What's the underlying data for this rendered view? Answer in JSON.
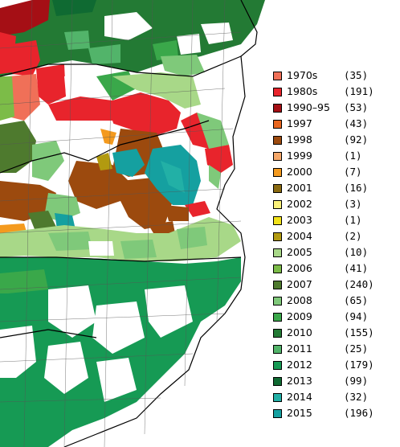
{
  "map": {
    "legend": [
      {
        "label": "1970s",
        "count": "(35)",
        "color": "#f07058"
      },
      {
        "label": "1980s",
        "count": "(191)",
        "color": "#e8242c"
      },
      {
        "label": "1990–95",
        "count": "(53)",
        "color": "#a50f15"
      },
      {
        "label": "1997",
        "count": "(43)",
        "color": "#e8661e"
      },
      {
        "label": "1998",
        "count": "(92)",
        "color": "#9c4a0e"
      },
      {
        "label": "1999",
        "count": "(1)",
        "color": "#f6a86a"
      },
      {
        "label": "2000",
        "count": "(7)",
        "color": "#f49a1e"
      },
      {
        "label": "2001",
        "count": "(16)",
        "color": "#8a6a10"
      },
      {
        "label": "2002",
        "count": "(3)",
        "color": "#fbf27a"
      },
      {
        "label": "2003",
        "count": "(1)",
        "color": "#f2e21a"
      },
      {
        "label": "2004",
        "count": "(2)",
        "color": "#b29a10"
      },
      {
        "label": "2005",
        "count": "(10)",
        "color": "#a8d888"
      },
      {
        "label": "2006",
        "count": "(41)",
        "color": "#7cbc48"
      },
      {
        "label": "2007",
        "count": "(240)",
        "color": "#4e7a2e"
      },
      {
        "label": "2008",
        "count": "(65)",
        "color": "#7fc97a"
      },
      {
        "label": "2009",
        "count": "(94)",
        "color": "#3aa84a"
      },
      {
        "label": "2010",
        "count": "(155)",
        "color": "#237a34"
      },
      {
        "label": "2011",
        "count": "(25)",
        "color": "#52b46a"
      },
      {
        "label": "2012",
        "count": "(179)",
        "color": "#169a54"
      },
      {
        "label": "2013",
        "count": "(99)",
        "color": "#0f6a32"
      },
      {
        "label": "2014",
        "count": "(32)",
        "color": "#22b0a6"
      },
      {
        "label": "2015",
        "count": "(196)",
        "color": "#15a0a0"
      }
    ]
  }
}
